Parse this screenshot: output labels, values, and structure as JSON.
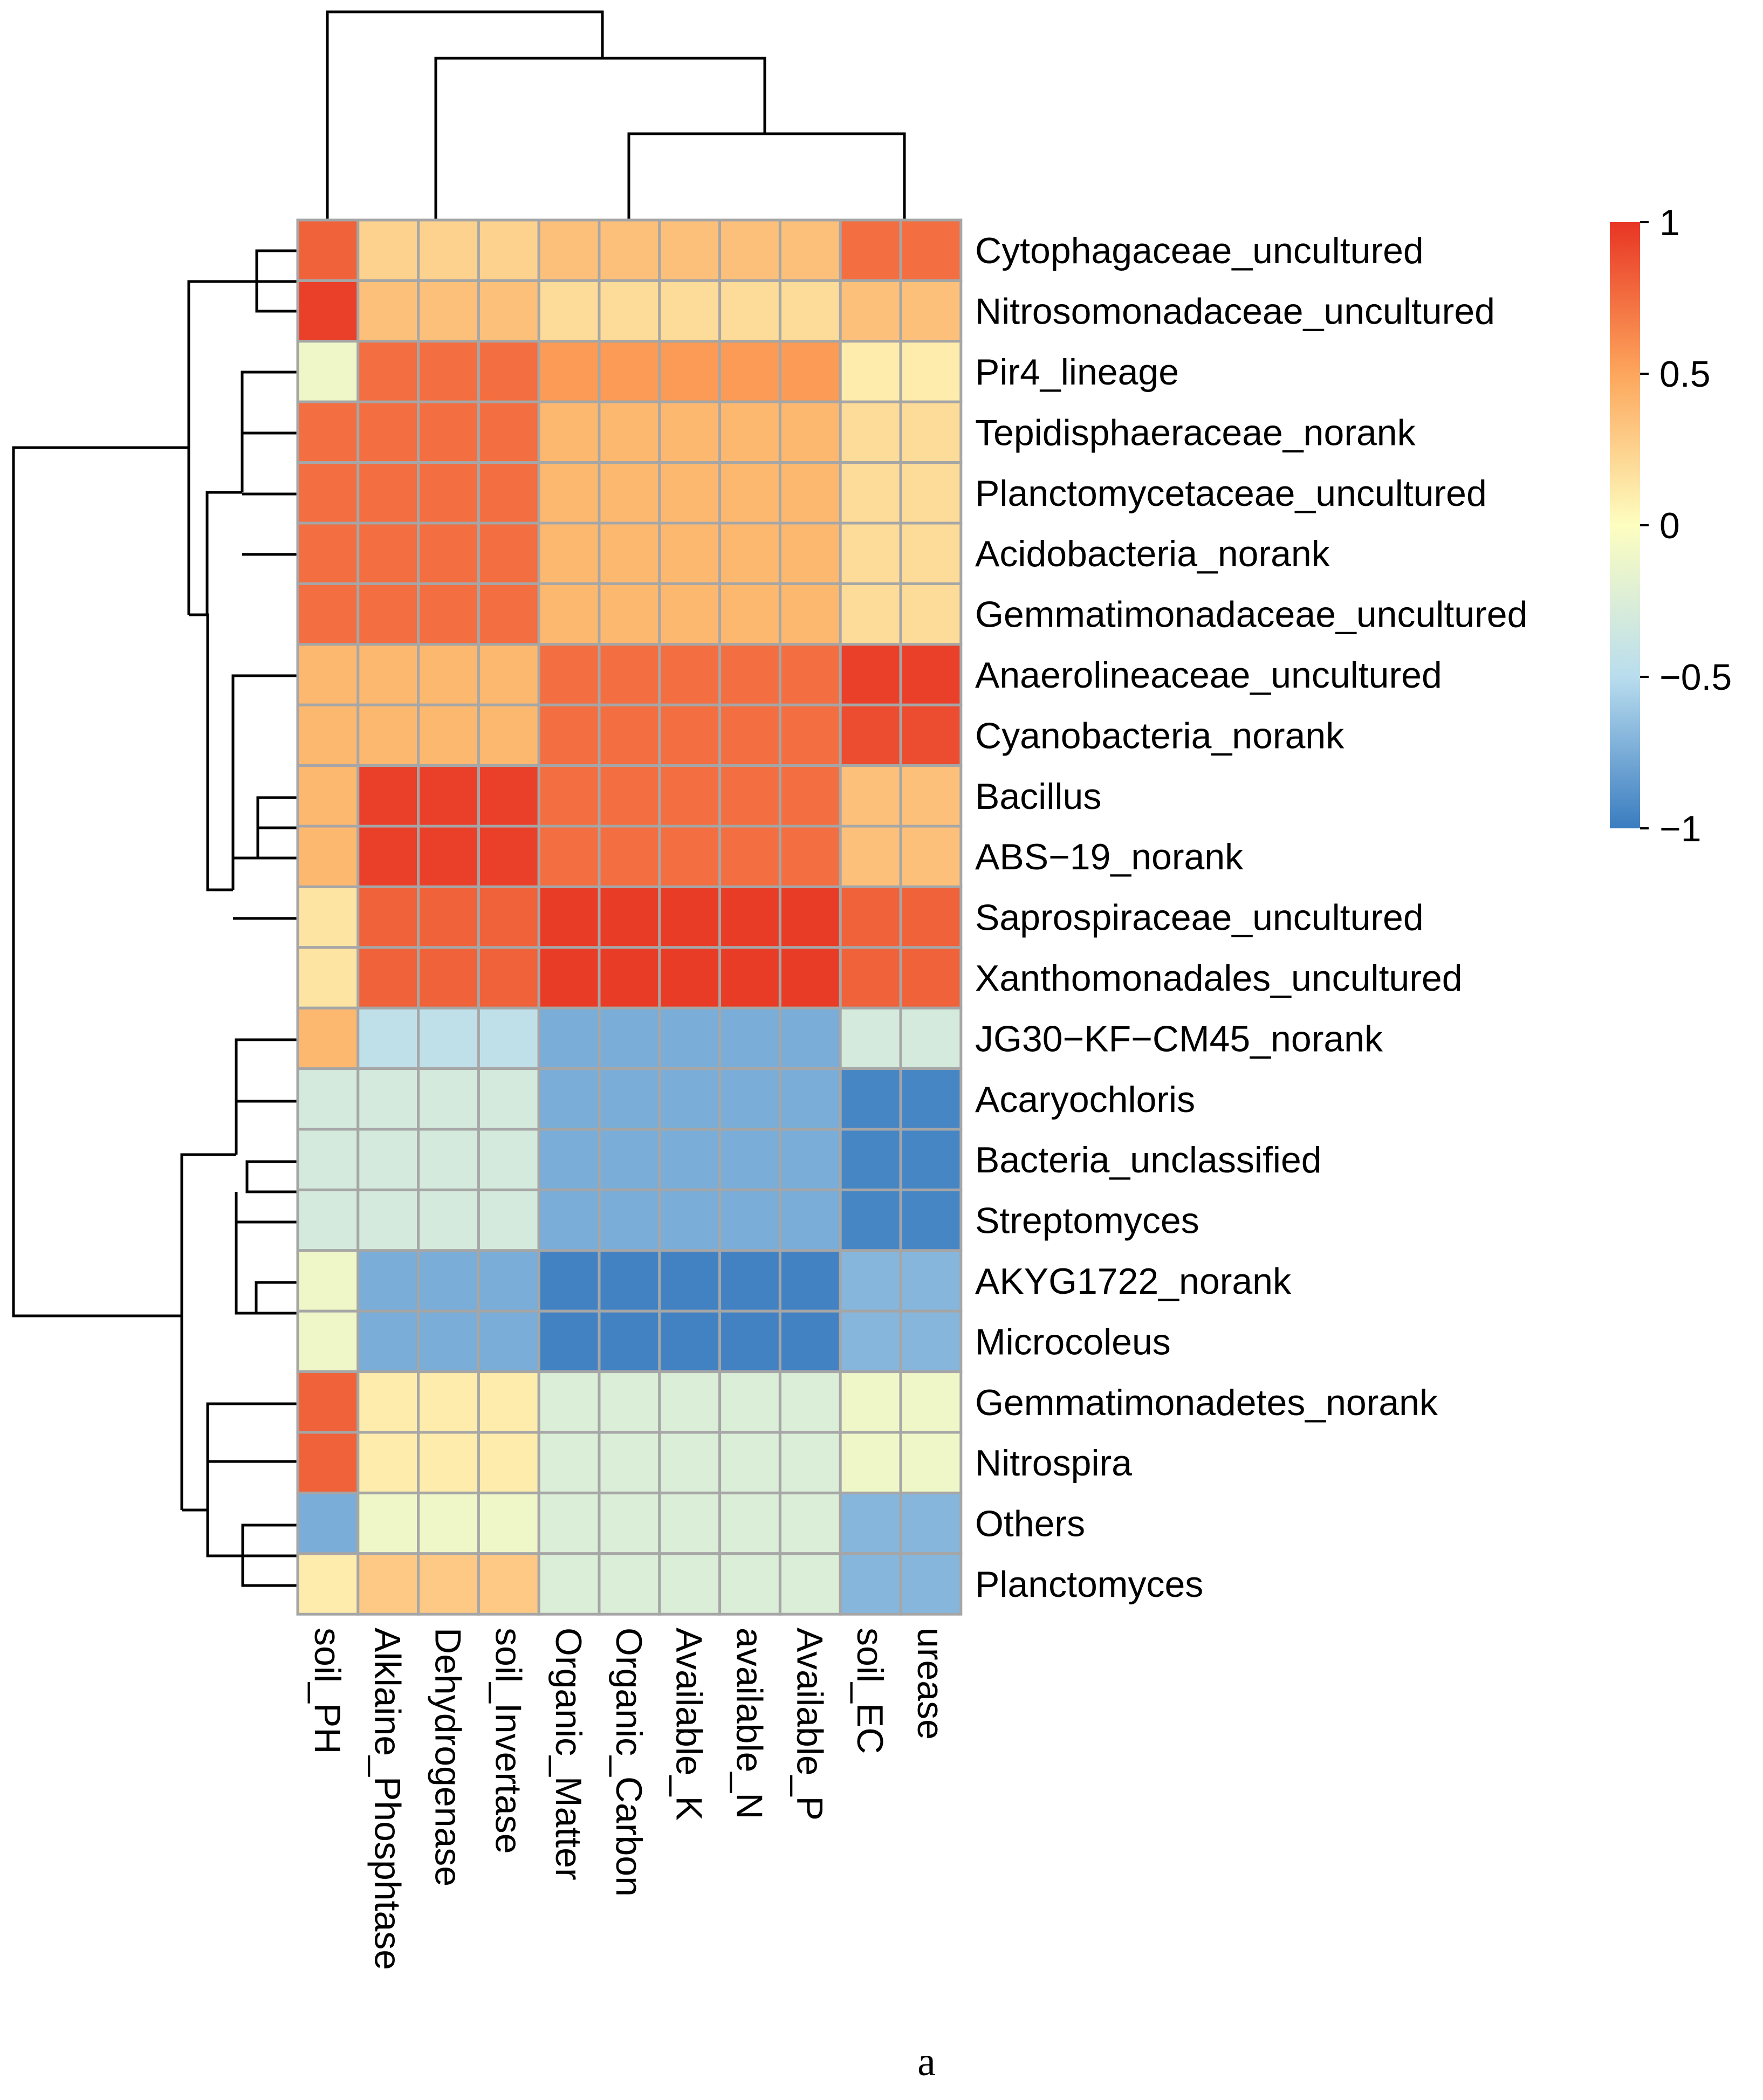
{
  "chart_data": {
    "type": "heatmap",
    "title": "",
    "xlabel": "",
    "ylabel": "",
    "columns": [
      "soil_PH",
      "Alklaine_Phosphtase",
      "Dehydrogenase",
      "soil_Invertase",
      "Organic_Matter",
      "Organic_Carbon",
      "Available_K",
      "available_N",
      "Available_P",
      "soil_EC",
      "urease"
    ],
    "rows": [
      "Cytophagaceae_uncultured",
      "Nitrosomonadaceae_uncultured",
      "Pir4_lineage",
      "Tepidisphaeraceae_norank",
      "Planctomycetaceae_uncultured",
      "Acidobacteria_norank",
      "Gemmatimonadaceae_uncultured",
      "Anaerolineaceae_uncultured",
      "Cyanobacteria_norank",
      "Bacillus",
      "ABS−19_norank",
      "Saprospiraceae_uncultured",
      "Xanthomonadales_uncultured",
      "JG30−KF−CM45_norank",
      "Acaryochloris",
      "Bacteria_unclassified",
      "Streptomyces",
      "AKYG1722_norank",
      "Microcoleus",
      "Gemmatimonadetes_norank",
      "Nitrospira",
      "Others",
      "Planctomyces"
    ],
    "values": [
      [
        0.8,
        0.25,
        0.25,
        0.25,
        0.35,
        0.35,
        0.35,
        0.35,
        0.35,
        0.75,
        0.75
      ],
      [
        0.95,
        0.35,
        0.35,
        0.35,
        0.2,
        0.2,
        0.2,
        0.2,
        0.2,
        0.35,
        0.35
      ],
      [
        -0.1,
        0.75,
        0.75,
        0.75,
        0.55,
        0.55,
        0.55,
        0.55,
        0.55,
        0.1,
        0.1
      ],
      [
        0.75,
        0.75,
        0.75,
        0.75,
        0.4,
        0.4,
        0.4,
        0.4,
        0.4,
        0.2,
        0.2
      ],
      [
        0.75,
        0.75,
        0.75,
        0.75,
        0.4,
        0.4,
        0.4,
        0.4,
        0.4,
        0.2,
        0.2
      ],
      [
        0.75,
        0.75,
        0.75,
        0.75,
        0.4,
        0.4,
        0.4,
        0.4,
        0.4,
        0.2,
        0.2
      ],
      [
        0.75,
        0.75,
        0.75,
        0.75,
        0.4,
        0.4,
        0.4,
        0.4,
        0.4,
        0.2,
        0.2
      ],
      [
        0.4,
        0.4,
        0.4,
        0.4,
        0.75,
        0.75,
        0.75,
        0.75,
        0.75,
        0.95,
        0.95
      ],
      [
        0.4,
        0.4,
        0.4,
        0.4,
        0.75,
        0.75,
        0.75,
        0.75,
        0.75,
        0.9,
        0.9
      ],
      [
        0.4,
        0.95,
        0.95,
        0.95,
        0.75,
        0.75,
        0.75,
        0.75,
        0.75,
        0.35,
        0.35
      ],
      [
        0.4,
        0.95,
        0.95,
        0.95,
        0.75,
        0.75,
        0.75,
        0.75,
        0.75,
        0.35,
        0.35
      ],
      [
        0.15,
        0.8,
        0.8,
        0.8,
        0.97,
        0.97,
        0.97,
        0.97,
        0.97,
        0.8,
        0.8
      ],
      [
        0.15,
        0.8,
        0.8,
        0.8,
        0.97,
        0.97,
        0.97,
        0.97,
        0.97,
        0.8,
        0.8
      ],
      [
        0.4,
        -0.45,
        -0.45,
        -0.45,
        -0.75,
        -0.75,
        -0.75,
        -0.75,
        -0.75,
        -0.3,
        -0.3
      ],
      [
        -0.3,
        -0.3,
        -0.3,
        -0.3,
        -0.75,
        -0.75,
        -0.75,
        -0.75,
        -0.75,
        -0.95,
        -0.95
      ],
      [
        -0.3,
        -0.3,
        -0.3,
        -0.3,
        -0.75,
        -0.75,
        -0.75,
        -0.75,
        -0.75,
        -0.95,
        -0.95
      ],
      [
        -0.3,
        -0.3,
        -0.3,
        -0.3,
        -0.75,
        -0.75,
        -0.75,
        -0.75,
        -0.75,
        -0.95,
        -0.95
      ],
      [
        -0.1,
        -0.75,
        -0.75,
        -0.75,
        -0.97,
        -0.97,
        -0.97,
        -0.97,
        -0.97,
        -0.7,
        -0.7
      ],
      [
        -0.1,
        -0.75,
        -0.75,
        -0.75,
        -0.97,
        -0.97,
        -0.97,
        -0.97,
        -0.97,
        -0.7,
        -0.7
      ],
      [
        0.8,
        0.1,
        0.1,
        0.1,
        -0.25,
        -0.25,
        -0.25,
        -0.25,
        -0.25,
        -0.1,
        -0.1
      ],
      [
        0.8,
        0.1,
        0.1,
        0.1,
        -0.25,
        -0.25,
        -0.25,
        -0.25,
        -0.25,
        -0.1,
        -0.1
      ],
      [
        -0.75,
        -0.1,
        -0.1,
        -0.1,
        -0.25,
        -0.25,
        -0.25,
        -0.25,
        -0.25,
        -0.7,
        -0.7
      ],
      [
        0.1,
        0.3,
        0.3,
        0.3,
        -0.25,
        -0.25,
        -0.25,
        -0.25,
        -0.25,
        -0.7,
        -0.7
      ]
    ],
    "color_scale": {
      "min": -1,
      "max": 1,
      "ticks": [
        "1",
        "0.5",
        "0",
        "−0.5",
        "−1"
      ],
      "tick_values": [
        1,
        0.5,
        0,
        -0.5,
        -1
      ],
      "colors": [
        "#3a7cc0",
        "#b9ddee",
        "#fdfec0",
        "#fda65c",
        "#e83524"
      ]
    },
    "row_clustering": true,
    "column_clustering": true,
    "legend_position": "top-right",
    "panel_label": "a"
  }
}
